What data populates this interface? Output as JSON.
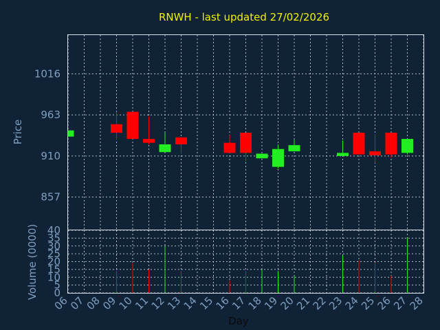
{
  "chart_data": {
    "type": "candlestick",
    "title": "RNWH - last updated 27/02/2026",
    "xlabel": "Day",
    "price_ylabel": "Price",
    "volume_ylabel": "Volume (0000)",
    "price_yticks": [
      857,
      910,
      963,
      1016
    ],
    "price_ylim": [
      815,
      1066
    ],
    "volume_yticks": [
      0,
      5,
      10,
      15,
      20,
      25,
      30,
      35,
      40
    ],
    "volume_ylim": [
      0,
      40
    ],
    "x_tick_labels": [
      "06",
      "07",
      "08",
      "09",
      "10",
      "11",
      "12",
      "13",
      "14",
      "15",
      "16",
      "17",
      "18",
      "19",
      "20",
      "21",
      "22",
      "23",
      "24",
      "25",
      "26",
      "27",
      "28"
    ],
    "grid": true,
    "colors": {
      "up": "#22ee22",
      "down": "#ff0000",
      "background": "#102236",
      "title": "#f2f200",
      "axis_text": "#7f9fbf",
      "grid": "#dde3ea"
    },
    "candles": [
      {
        "day": "06",
        "open": 935,
        "close": 943,
        "high": 943,
        "low": 935,
        "volume": 0
      },
      {
        "day": "09",
        "open": 951,
        "close": 940,
        "high": 967,
        "low": 931,
        "volume": 14
      },
      {
        "day": "10",
        "open": 967,
        "close": 932,
        "high": 967,
        "low": 932,
        "volume": 19
      },
      {
        "day": "11",
        "open": 932,
        "close": 927,
        "high": 961,
        "low": 925,
        "volume": 15
      },
      {
        "day": "12",
        "open": 915,
        "close": 925,
        "high": 940,
        "low": 915,
        "volume": 30
      },
      {
        "day": "13",
        "open": 934,
        "close": 925,
        "high": 934,
        "low": 913,
        "volume": 14
      },
      {
        "day": "16",
        "open": 927,
        "close": 914,
        "high": 937,
        "low": 914,
        "volume": 8
      },
      {
        "day": "17",
        "open": 940,
        "close": 914,
        "high": 940,
        "low": 903,
        "volume": 14
      },
      {
        "day": "18",
        "open": 907,
        "close": 913,
        "high": 913,
        "low": 907,
        "volume": 15
      },
      {
        "day": "19",
        "open": 896,
        "close": 919,
        "high": 925,
        "low": 894,
        "volume": 14
      },
      {
        "day": "20",
        "open": 916,
        "close": 924,
        "high": 931,
        "low": 916,
        "volume": 11
      },
      {
        "day": "23",
        "open": 910,
        "close": 914,
        "high": 930,
        "low": 910,
        "volume": 24
      },
      {
        "day": "24",
        "open": 940,
        "close": 912,
        "high": 940,
        "low": 912,
        "volume": 21
      },
      {
        "day": "25",
        "open": 916,
        "close": 911,
        "high": 938,
        "low": 901,
        "volume": 19
      },
      {
        "day": "26",
        "open": 940,
        "close": 912,
        "high": 940,
        "low": 908,
        "volume": 11
      },
      {
        "day": "27",
        "open": 914,
        "close": 932,
        "high": 932,
        "low": 912,
        "volume": 35
      }
    ]
  }
}
